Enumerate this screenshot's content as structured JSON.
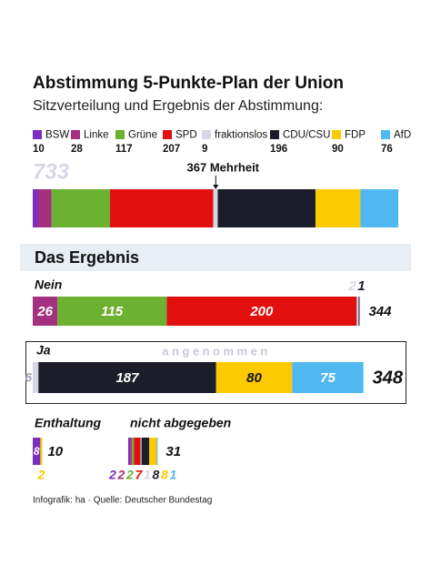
{
  "chart_data": [
    {
      "type": "stacked-bar",
      "title": "Abstimmung 5-Punkte-Plan der Union",
      "subtitle": "Sitzverteilung und Ergebnis der Abstimmung:",
      "categories": [
        "BSW",
        "Linke",
        "Grüne",
        "SPD",
        "fraktionslos",
        "CDU/CSU",
        "FDP",
        "AfD"
      ],
      "colors": [
        "#7a2fc0",
        "#a3317f",
        "#6cb12f",
        "#e1100f",
        "#d5d7e5",
        "#1c1d2b",
        "#fdc900",
        "#50b8f0"
      ],
      "values": [
        10,
        28,
        117,
        207,
        9,
        196,
        90,
        76
      ],
      "total": 733,
      "annotation": {
        "value": 367,
        "label": "367 Mehrheit"
      },
      "section": "Das Ergebnis",
      "source": "Infografik: ha  ·  Quelle: Deutscher Bundestag"
    },
    {
      "type": "stacked-bar",
      "title": "Nein",
      "values": [
        26,
        115,
        200,
        2,
        1
      ],
      "colors": [
        "#a3317f",
        "#6cb12f",
        "#e1100f",
        "#d5d7e5",
        "#1c1d2b"
      ],
      "total": 344,
      "small_label": "above"
    },
    {
      "type": "stacked-bar",
      "title": "Ja",
      "status": "angenommen",
      "values": [
        6,
        187,
        80,
        75
      ],
      "colors": [
        "#d5d7e5",
        "#1c1d2b",
        "#fdc900",
        "#50b8f0"
      ],
      "total": 348,
      "small_label": "left"
    },
    {
      "type": "stacked-bar",
      "title": "Enthaltung",
      "values": [
        8,
        2
      ],
      "colors": [
        "#7a2fc0",
        "#fdc900"
      ],
      "total": 10,
      "small_label": "below"
    },
    {
      "type": "stacked-bar",
      "title": "nicht abgegeben",
      "values": [
        2,
        2,
        2,
        7,
        1,
        8,
        8,
        1
      ],
      "colors": [
        "#7a2fc0",
        "#a3317f",
        "#6cb12f",
        "#e1100f",
        "#d5d7e5",
        "#1c1d2b",
        "#fdc900",
        "#50b8f0"
      ],
      "total": 31,
      "label_position": "below"
    }
  ]
}
